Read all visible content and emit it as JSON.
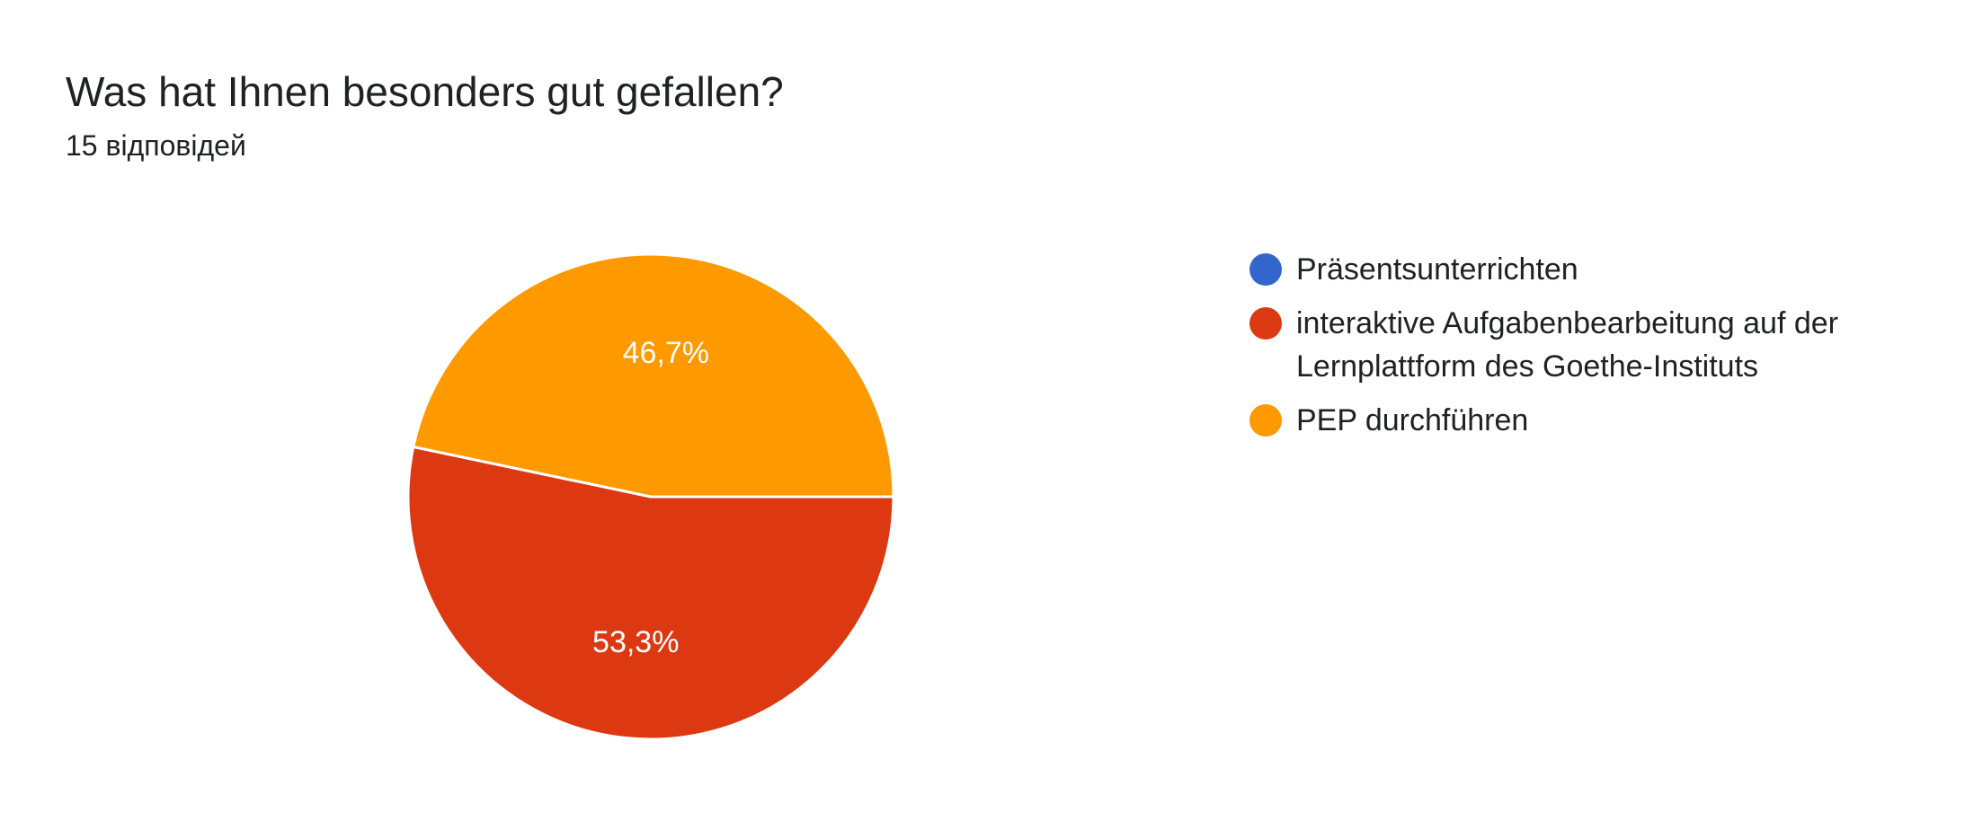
{
  "header": {
    "title": "Was hat Ihnen besonders gut gefallen?",
    "response_count": "15 відповідей"
  },
  "chart_data": {
    "type": "pie",
    "categories": [
      "Präsentsunterrichten",
      "interaktive Aufgabenbearbeitung auf der Lernplattform des Goethe-Instituts",
      "PEP durchführen"
    ],
    "values": [
      0,
      53.3,
      46.7
    ],
    "value_labels": [
      "",
      "53,3%",
      "46,7%"
    ],
    "colors": [
      "#3366cc",
      "#dc3912",
      "#ff9900"
    ],
    "legend": "right",
    "legend_lines": [
      [
        "Präsentsunterrichten"
      ],
      [
        "interaktive Aufgabenbearbeitung auf der",
        "Lernplattform des Goethe-Instituts"
      ],
      [
        "PEP durchführen"
      ]
    ]
  }
}
